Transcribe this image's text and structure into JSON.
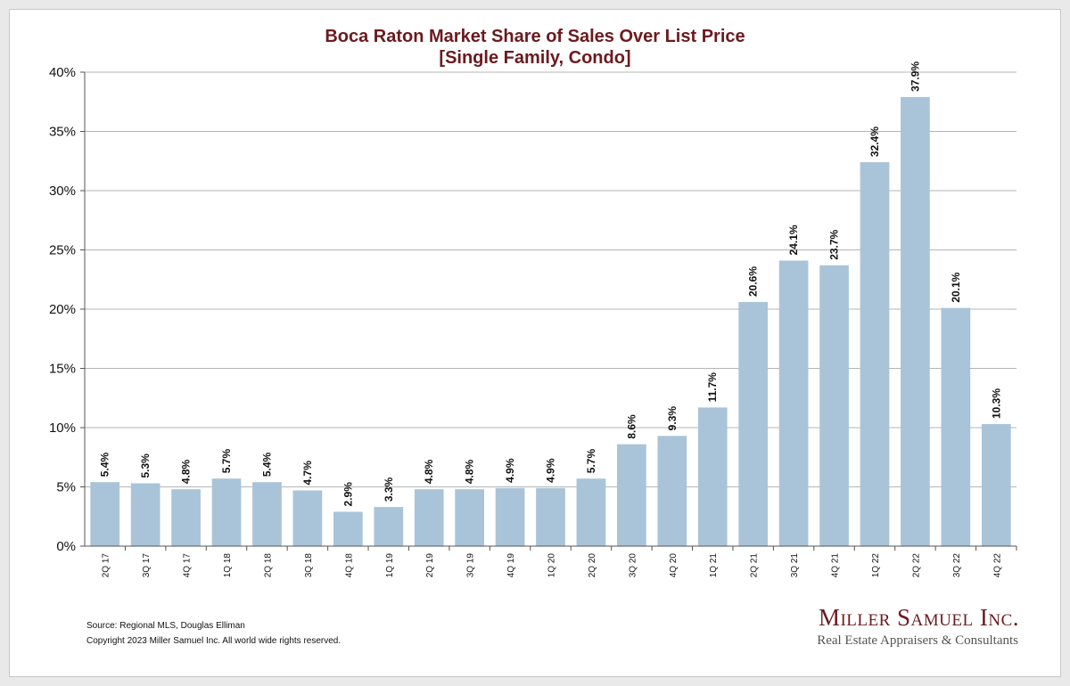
{
  "title_line1": "Boca Raton Market Share of Sales Over List Price",
  "title_line2": "[Single Family, Condo]",
  "source": "Source: Regional MLS, Douglas Elliman",
  "copyright": "Copyright 2023 Miller Samuel Inc.  All world wide rights reserved.",
  "brand": {
    "name": "Miller Samuel Inc.",
    "tagline": "Real Estate Appraisers & Consultants"
  },
  "colors": {
    "title": "#6b1a1f",
    "bar": "#a9c4d9",
    "grid": "#b5b5b5"
  },
  "chart_data": {
    "type": "bar",
    "title": "Boca Raton Market Share of Sales Over List Price [Single Family, Condo]",
    "xlabel": "",
    "ylabel": "",
    "ylim": [
      0,
      40
    ],
    "yticks": [
      0,
      5,
      10,
      15,
      20,
      25,
      30,
      35,
      40
    ],
    "ytick_labels": [
      "0%",
      "5%",
      "10%",
      "15%",
      "20%",
      "25%",
      "30%",
      "35%",
      "40%"
    ],
    "grid": true,
    "categories": [
      "2Q 17",
      "3Q 17",
      "4Q 17",
      "1Q 18",
      "2Q 18",
      "3Q 18",
      "4Q 18",
      "1Q 19",
      "2Q 19",
      "3Q 19",
      "4Q 19",
      "1Q 20",
      "2Q 20",
      "3Q 20",
      "4Q 20",
      "1Q 21",
      "2Q 21",
      "3Q 21",
      "4Q 21",
      "1Q 22",
      "2Q 22",
      "3Q 22",
      "4Q 22"
    ],
    "values": [
      5.4,
      5.3,
      4.8,
      5.7,
      5.4,
      4.7,
      2.9,
      3.3,
      4.8,
      4.8,
      4.9,
      4.9,
      5.7,
      8.6,
      9.3,
      11.7,
      20.6,
      24.1,
      23.7,
      32.4,
      37.9,
      20.1,
      10.3
    ],
    "value_labels": [
      "5.4%",
      "5.3%",
      "4.8%",
      "5.7%",
      "5.4%",
      "4.7%",
      "2.9%",
      "3.3%",
      "4.8%",
      "4.8%",
      "4.9%",
      "4.9%",
      "5.7%",
      "8.6%",
      "9.3%",
      "11.7%",
      "20.6%",
      "24.1%",
      "23.7%",
      "32.4%",
      "37.9%",
      "20.1%",
      "10.3%"
    ]
  }
}
